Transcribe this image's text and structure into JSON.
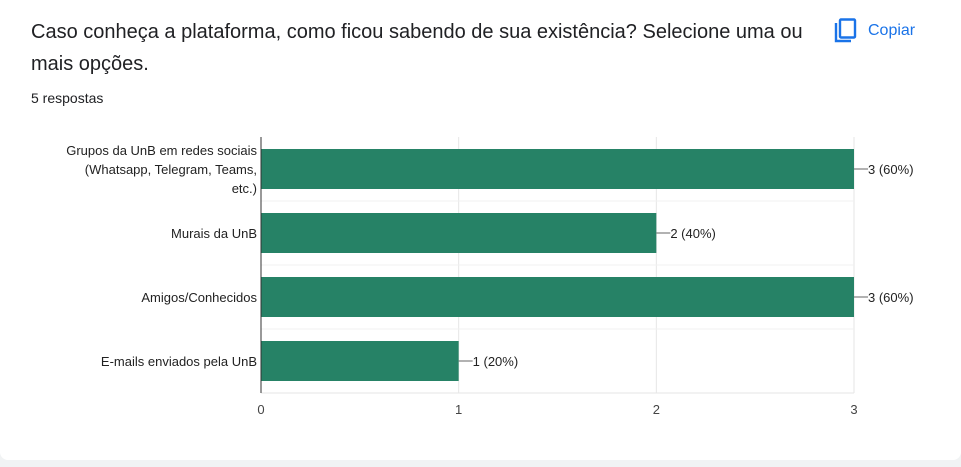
{
  "question": {
    "title": "Caso conheça a plataforma, como ficou sabendo de sua existência? Selecione uma ou mais opções.",
    "responses": "5 respostas"
  },
  "toolbar": {
    "copy_label": "Copiar",
    "copy_icon": "copy-icon"
  },
  "colors": {
    "bar": "#268266",
    "accent": "#1a73e8"
  },
  "chart_data": {
    "type": "bar",
    "orientation": "horizontal",
    "categories": [
      [
        "Grupos da UnB em redes sociais",
        "(Whatsapp, Telegram, Teams,",
        "etc.)"
      ],
      [
        "Murais da UnB"
      ],
      [
        "Amigos/Conhecidos"
      ],
      [
        "E-mails enviados pela UnB"
      ]
    ],
    "values": [
      3,
      2,
      3,
      1
    ],
    "value_labels": [
      "3 (60%)",
      "2 (40%)",
      "3 (60%)",
      "1 (20%)"
    ],
    "x_ticks": [
      "0",
      "1",
      "2",
      "3"
    ],
    "xlim": [
      0,
      3
    ],
    "grid": true,
    "legend": "none"
  }
}
